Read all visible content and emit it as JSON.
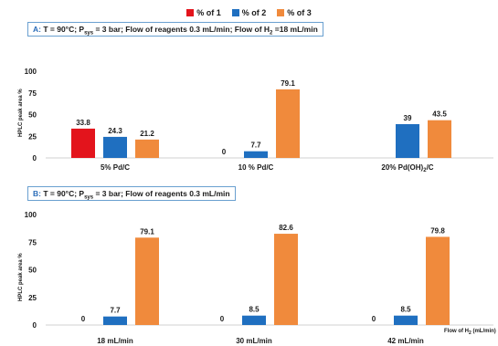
{
  "legend": [
    {
      "label": "% of 1",
      "color": "#e3141c"
    },
    {
      "label": "% of 2",
      "color": "#1f6fc0"
    },
    {
      "label": "% of 3",
      "color": "#f08a3c"
    }
  ],
  "panels": {
    "a": {
      "letter": "A:",
      "title_pre": " T = 90°C; P",
      "title_sub1": "sys",
      "title_mid": " = 3 bar; Flow of reagents 0.3 mL/min; Flow of H",
      "title_sub2": "2",
      "title_post": " =18 mL/min"
    },
    "b": {
      "letter": "B:",
      "title_pre": " T = 90°C; P",
      "title_sub1": "sys",
      "title_post": " = 3 bar; Flow of reagents 0.3 mL/min"
    }
  },
  "ylabel": "HPLC peak area %",
  "xlabel_b": {
    "pre": "Flow of H",
    "sub": "2",
    "post": " (mL/min)"
  },
  "chart_data": [
    {
      "type": "bar",
      "title": "A: T = 90°C; Psys = 3 bar; Flow of reagents 0.3 mL/min; Flow of H2 =18 mL/min",
      "categories": [
        "5% Pd/C",
        "10 % Pd/C",
        "20% Pd(OH)2/C"
      ],
      "category_parts": [
        {
          "pre": "5% Pd/C",
          "sub": "",
          "post": ""
        },
        {
          "pre": "10 % Pd/C",
          "sub": "",
          "post": ""
        },
        {
          "pre": "20% Pd(OH)",
          "sub": "2",
          "post": "/C"
        }
      ],
      "series": [
        {
          "name": "% of 1",
          "values": [
            33.8,
            0,
            null
          ]
        },
        {
          "name": "% of 2",
          "values": [
            24.3,
            7.7,
            39
          ]
        },
        {
          "name": "% of 3",
          "values": [
            21.2,
            79.1,
            43.5
          ]
        }
      ],
      "zero_labels": [
        [
          false,
          true,
          true
        ],
        [
          false,
          false,
          false
        ],
        [
          false,
          false,
          false
        ]
      ],
      "ylabel": "HPLC peak area %",
      "ylim": [
        0,
        100
      ],
      "yticks": [
        0,
        25,
        50,
        75,
        100
      ],
      "grid": false
    },
    {
      "type": "bar",
      "title": "B: T = 90°C; Psys = 3 bar; Flow of reagents 0.3 mL/min",
      "categories": [
        "18 mL/min",
        "30 mL/min",
        "42 mL/min"
      ],
      "category_parts": [
        {
          "pre": "18 mL/min",
          "sub": "",
          "post": ""
        },
        {
          "pre": "30 mL/min",
          "sub": "",
          "post": ""
        },
        {
          "pre": "42 mL/min",
          "sub": "",
          "post": ""
        }
      ],
      "series": [
        {
          "name": "% of 1",
          "values": [
            0,
            0,
            0
          ]
        },
        {
          "name": "% of 2",
          "values": [
            7.7,
            8.5,
            8.5
          ]
        },
        {
          "name": "% of 3",
          "values": [
            79.1,
            82.6,
            79.8
          ]
        }
      ],
      "zero_labels": [
        [
          true,
          true,
          true
        ],
        [
          false,
          false,
          false
        ],
        [
          false,
          false,
          false
        ]
      ],
      "xlabel": "Flow of H2 (mL/min)",
      "ylabel": "HPLC peak area %",
      "ylim": [
        0,
        100
      ],
      "yticks": [
        0,
        25,
        50,
        75,
        100
      ],
      "grid": false
    }
  ]
}
